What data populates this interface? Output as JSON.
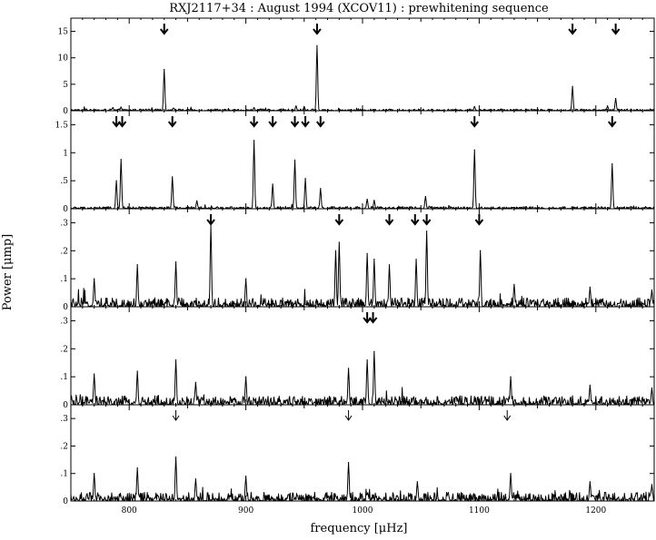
{
  "chart_data": {
    "type": "line",
    "title": "RXJ2117+34 :   August 1994 (XCOV11) : prewhitening sequence",
    "xlabel": "frequency [μHz]",
    "ylabel": "Power [μmp]",
    "xlim": [
      750,
      1250
    ],
    "xticks": [
      800,
      900,
      1000,
      1100,
      1200
    ],
    "xtick_labels": [
      "800",
      "900",
      "1000",
      "1100",
      "1200"
    ],
    "grid": false,
    "legend": "none",
    "panels": [
      {
        "id": "panel-1",
        "ylim": [
          0,
          17.5
        ],
        "yticks": [
          0,
          5,
          10,
          15
        ],
        "ytick_labels": [
          "0",
          "5",
          "10",
          "15"
        ],
        "noise": 0.22,
        "peaks": [
          {
            "x": 830,
            "y": 7.8
          },
          {
            "x": 961,
            "y": 12.3
          },
          {
            "x": 1180,
            "y": 4.6
          },
          {
            "x": 1217,
            "y": 2.3
          },
          {
            "x": 1210,
            "y": 0.9
          },
          {
            "x": 1096,
            "y": 0.8
          },
          {
            "x": 943,
            "y": 0.9
          },
          {
            "x": 907,
            "y": 0.6
          },
          {
            "x": 786,
            "y": 0.6
          },
          {
            "x": 793,
            "y": 0.7
          },
          {
            "x": 838,
            "y": 0.5
          },
          {
            "x": 950,
            "y": 0.8
          }
        ],
        "arrows": [
          {
            "x": 830,
            "style": "bold"
          },
          {
            "x": 961,
            "style": "bold"
          },
          {
            "x": 1180,
            "style": "bold"
          },
          {
            "x": 1217,
            "style": "bold"
          }
        ]
      },
      {
        "id": "panel-2",
        "ylim": [
          0,
          1.75
        ],
        "yticks": [
          0,
          0.5,
          1,
          1.5
        ],
        "ytick_labels": [
          "0",
          ".5",
          "1",
          "1.5"
        ],
        "noise": 0.025,
        "peaks": [
          {
            "x": 789,
            "y": 0.5
          },
          {
            "x": 793,
            "y": 0.88
          },
          {
            "x": 837,
            "y": 0.57
          },
          {
            "x": 907,
            "y": 1.22
          },
          {
            "x": 923,
            "y": 0.44
          },
          {
            "x": 942,
            "y": 0.87
          },
          {
            "x": 951,
            "y": 0.54
          },
          {
            "x": 964,
            "y": 0.36
          },
          {
            "x": 1096,
            "y": 1.05
          },
          {
            "x": 1214,
            "y": 0.8
          },
          {
            "x": 1054,
            "y": 0.22
          },
          {
            "x": 1004,
            "y": 0.17
          },
          {
            "x": 858,
            "y": 0.14
          },
          {
            "x": 1010,
            "y": 0.15
          }
        ],
        "arrows": [
          {
            "x": 789,
            "style": "bold"
          },
          {
            "x": 794,
            "style": "bold"
          },
          {
            "x": 837,
            "style": "bold"
          },
          {
            "x": 907,
            "style": "bold"
          },
          {
            "x": 923,
            "style": "bold"
          },
          {
            "x": 942,
            "style": "bold"
          },
          {
            "x": 951,
            "style": "bold"
          },
          {
            "x": 964,
            "style": "bold"
          },
          {
            "x": 1096,
            "style": "bold"
          },
          {
            "x": 1214,
            "style": "bold"
          }
        ]
      },
      {
        "id": "panel-3",
        "ylim": [
          0,
          0.35
        ],
        "yticks": [
          0,
          0.1,
          0.2,
          0.3
        ],
        "ytick_labels": [
          "0",
          ".1",
          ".2",
          ".3"
        ],
        "noise": 0.02,
        "peaks": [
          {
            "x": 870,
            "y": 0.29
          },
          {
            "x": 977,
            "y": 0.2
          },
          {
            "x": 980,
            "y": 0.23
          },
          {
            "x": 1004,
            "y": 0.19
          },
          {
            "x": 1010,
            "y": 0.17
          },
          {
            "x": 1023,
            "y": 0.15
          },
          {
            "x": 1046,
            "y": 0.17
          },
          {
            "x": 1055,
            "y": 0.27
          },
          {
            "x": 1101,
            "y": 0.2
          },
          {
            "x": 807,
            "y": 0.15
          },
          {
            "x": 840,
            "y": 0.16
          },
          {
            "x": 770,
            "y": 0.1
          },
          {
            "x": 900,
            "y": 0.1
          },
          {
            "x": 1130,
            "y": 0.08
          },
          {
            "x": 1195,
            "y": 0.07
          },
          {
            "x": 1248,
            "y": 0.06
          }
        ],
        "arrows": [
          {
            "x": 870,
            "style": "bold"
          },
          {
            "x": 980,
            "style": "bold"
          },
          {
            "x": 1023,
            "style": "bold"
          },
          {
            "x": 1045,
            "style": "bold"
          },
          {
            "x": 1055,
            "style": "bold"
          },
          {
            "x": 1100,
            "style": "bold"
          }
        ]
      },
      {
        "id": "panel-4",
        "ylim": [
          0,
          0.35
        ],
        "yticks": [
          0,
          0.1,
          0.2,
          0.3
        ],
        "ytick_labels": [
          "0",
          ".1",
          ".2",
          ".3"
        ],
        "noise": 0.02,
        "peaks": [
          {
            "x": 1004,
            "y": 0.16
          },
          {
            "x": 1010,
            "y": 0.19
          },
          {
            "x": 840,
            "y": 0.16
          },
          {
            "x": 807,
            "y": 0.12
          },
          {
            "x": 770,
            "y": 0.11
          },
          {
            "x": 988,
            "y": 0.13
          },
          {
            "x": 900,
            "y": 0.1
          },
          {
            "x": 1127,
            "y": 0.1
          },
          {
            "x": 857,
            "y": 0.08
          },
          {
            "x": 1195,
            "y": 0.07
          },
          {
            "x": 1248,
            "y": 0.06
          }
        ],
        "arrows": [
          {
            "x": 1004,
            "style": "bold"
          },
          {
            "x": 1009,
            "style": "bold"
          }
        ]
      },
      {
        "id": "panel-5",
        "ylim": [
          0,
          0.35
        ],
        "yticks": [
          0,
          0.1,
          0.2,
          0.3
        ],
        "ytick_labels": [
          "0",
          ".1",
          ".2",
          ".3"
        ],
        "noise": 0.02,
        "peaks": [
          {
            "x": 840,
            "y": 0.16
          },
          {
            "x": 988,
            "y": 0.14
          },
          {
            "x": 1127,
            "y": 0.1
          },
          {
            "x": 807,
            "y": 0.12
          },
          {
            "x": 770,
            "y": 0.1
          },
          {
            "x": 900,
            "y": 0.09
          },
          {
            "x": 857,
            "y": 0.08
          },
          {
            "x": 1195,
            "y": 0.07
          },
          {
            "x": 1248,
            "y": 0.06
          },
          {
            "x": 1047,
            "y": 0.07
          }
        ],
        "arrows": [
          {
            "x": 840,
            "style": "thin"
          },
          {
            "x": 988,
            "style": "thin"
          },
          {
            "x": 1124,
            "style": "thin"
          }
        ]
      }
    ]
  }
}
